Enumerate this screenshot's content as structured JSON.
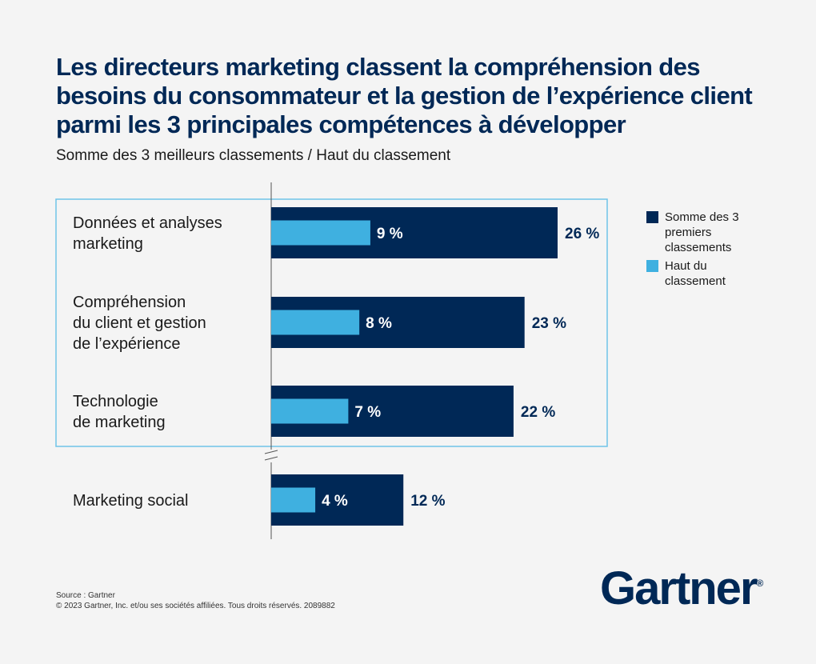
{
  "header": {
    "title": "Les directeurs marketing classent la compréhension des besoins du consommateur et la gestion de l’expérience client parmi les 3 principales compétences à développer",
    "subtitle": "Somme des 3 meilleurs classements / Haut du classement"
  },
  "chart_data": {
    "type": "bar",
    "orientation": "horizontal",
    "categories": [
      "Données et analyses marketing",
      "Compréhension du client et gestion de l’expérience",
      "Technologie de marketing",
      "Marketing social"
    ],
    "series": [
      {
        "name": "Somme des 3 premiers classements",
        "values": [
          26,
          23,
          22,
          12
        ],
        "labels": [
          "26 %",
          "23 %",
          "22 %",
          "12 %"
        ],
        "color": "#002856"
      },
      {
        "name": "Haut du classement",
        "values": [
          9,
          8,
          7,
          4
        ],
        "labels": [
          "9 %",
          "8 %",
          "7 %",
          "4 %"
        ],
        "color": "#3fb0e0"
      }
    ],
    "unit": "%",
    "highlight_categories": [
      0,
      1,
      2
    ],
    "highlight_color": "#6ec3e8",
    "legend_position": "right"
  },
  "legend": {
    "items": [
      {
        "label": "Somme des 3 premiers classements",
        "color": "#002856"
      },
      {
        "label": "Haut du classement",
        "color": "#3fb0e0"
      }
    ]
  },
  "footer": {
    "source": "Source : Gartner",
    "copyright": "© 2023 Gartner, Inc. et/ou ses sociétés affiliées. Tous droits réservés. 2089882"
  },
  "logo": {
    "text": "Gartner",
    "mark": "®"
  }
}
